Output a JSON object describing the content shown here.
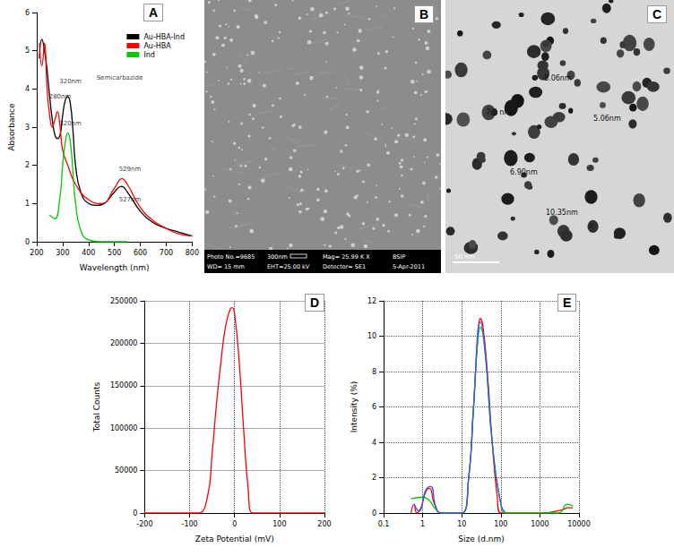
{
  "chart_data": [
    {
      "label": "A",
      "type": "line",
      "x_label": "Wavelength (nm)",
      "y_label": "Absorbance",
      "xlim": [
        200,
        800
      ],
      "xticks": [
        200,
        300,
        400,
        500,
        600,
        700,
        800
      ],
      "ylim": [
        0,
        6
      ],
      "yticks": [
        0,
        1,
        2,
        3,
        4,
        5,
        6
      ],
      "grid": false,
      "legend": "upper right",
      "series": [
        {
          "name": "Au-HBA-Ind",
          "color": "#000000",
          "x": [
            210,
            220,
            230,
            240,
            250,
            260,
            270,
            280,
            290,
            300,
            310,
            320,
            330,
            340,
            350,
            370,
            400,
            430,
            460,
            500,
            527,
            550,
            600,
            650,
            700,
            750,
            800
          ],
          "values": [
            4.8,
            5.3,
            5.0,
            4.5,
            3.8,
            3.2,
            2.8,
            2.7,
            2.8,
            3.3,
            3.7,
            3.8,
            3.6,
            2.9,
            2.0,
            1.3,
            1.0,
            0.95,
            1.0,
            1.3,
            1.45,
            1.3,
            0.8,
            0.5,
            0.35,
            0.25,
            0.15
          ]
        },
        {
          "name": "Au-HBA",
          "color": "#ff0000",
          "x": [
            210,
            220,
            230,
            240,
            250,
            260,
            270,
            280,
            290,
            300,
            320,
            350,
            400,
            450,
            500,
            529,
            550,
            600,
            650,
            700,
            750,
            800
          ],
          "values": [
            5.2,
            4.6,
            5.2,
            4.0,
            3.3,
            3.0,
            3.2,
            3.4,
            3.0,
            2.4,
            2.0,
            1.5,
            1.1,
            1.0,
            1.4,
            1.65,
            1.5,
            0.9,
            0.55,
            0.35,
            0.2,
            0.15
          ]
        },
        {
          "name": "Ind",
          "color": "#00cc00",
          "x": [
            250,
            270,
            290,
            300,
            310,
            320,
            330,
            340,
            350,
            370,
            400,
            450,
            500,
            550
          ],
          "values": [
            0.7,
            0.6,
            1.2,
            2.0,
            2.6,
            2.85,
            2.6,
            1.8,
            1.0,
            0.3,
            0.05,
            0,
            0,
            0
          ]
        }
      ],
      "annotations": [
        {
          "text": "280nm",
          "x": 290,
          "y": 3.8
        },
        {
          "text": "320nm",
          "x": 330,
          "y": 4.2
        },
        {
          "text": "320nm",
          "x": 330,
          "y": 3.1
        },
        {
          "text": "529nm",
          "x": 560,
          "y": 1.9
        },
        {
          "text": "527nm",
          "x": 560,
          "y": 1.1
        },
        {
          "text": "Semicarbazide",
          "x": 520,
          "y": 4.3
        }
      ]
    },
    {
      "label": "D",
      "type": "line",
      "x_label": "Zeta Potential (mV)",
      "y_label": "Total Counts",
      "xlim": [
        -200,
        200
      ],
      "xticks": [
        -200,
        -100,
        0,
        100,
        200
      ],
      "ylim": [
        0,
        250000
      ],
      "yticks": [
        0,
        50000,
        100000,
        150000,
        200000,
        250000
      ],
      "grid": true,
      "color": "#ff0000",
      "x": [
        -200,
        -100,
        -80,
        -60,
        -50,
        -40,
        -30,
        -20,
        -10,
        -5,
        0,
        10,
        20,
        30,
        40,
        100,
        200
      ],
      "values": [
        0,
        0,
        0,
        20000,
        70000,
        130000,
        180000,
        220000,
        240000,
        242000,
        235000,
        180000,
        100000,
        30000,
        0,
        0,
        0
      ]
    },
    {
      "label": "E",
      "type": "line",
      "x_label": "Size (d.nm)",
      "y_label": "Intensity (%)",
      "log": "x",
      "xlim": [
        0.1,
        10000
      ],
      "xticks": [
        0.1,
        1,
        10,
        100,
        1000,
        10000
      ],
      "ylim": [
        0,
        12
      ],
      "yticks": [
        0,
        2,
        4,
        6,
        8,
        10,
        12
      ],
      "grid": true,
      "series": [
        {
          "color": "#ff0000",
          "x": [
            0.5,
            0.6,
            0.7,
            0.9,
            1.2,
            1.5,
            2,
            3,
            10,
            15,
            20,
            25,
            30,
            35,
            45,
            60,
            80,
            100,
            1000,
            4000,
            5000,
            7000
          ],
          "values": [
            0,
            0.5,
            0,
            0.3,
            1.2,
            1.4,
            0.5,
            0,
            0,
            2,
            6,
            9.5,
            11,
            10.5,
            8,
            4,
            1,
            0,
            0,
            0.2,
            0.3,
            0.3
          ]
        },
        {
          "color": "#00cc00",
          "x": [
            0.5,
            1,
            1.5,
            2,
            3,
            10,
            15,
            20,
            25,
            30,
            40,
            60,
            100,
            130,
            3000,
            5000,
            7000
          ],
          "values": [
            0.8,
            0.9,
            0.7,
            0.3,
            0,
            0,
            2,
            6,
            9.5,
            10.5,
            9,
            4,
            0.5,
            0,
            0,
            0.5,
            0.4
          ]
        },
        {
          "color": "#3355ff",
          "x": [
            0.6,
            0.8,
            1.2,
            1.6,
            2.2,
            3,
            10,
            15,
            20,
            30,
            40,
            60,
            100,
            130
          ],
          "values": [
            0.5,
            0.1,
            1.3,
            1.5,
            0.3,
            0,
            0,
            2,
            6,
            10.8,
            9,
            4,
            0.5,
            0
          ]
        }
      ]
    }
  ],
  "images": [
    {
      "label": "B",
      "footer": [
        [
          "Photo No.=9685",
          "300nm",
          "Mag= 25.99 K X",
          "BSIP"
        ],
        [
          "WD= 15 mm",
          "EHT=25.00 kV",
          "Detector= SE1",
          "5-Apr-2011"
        ]
      ]
    },
    {
      "label": "C",
      "particle_labels": [
        "8.06nm",
        "7.0 nm",
        "5.06nm",
        "6.90nm",
        "10.35nm"
      ],
      "scale_bar": "50 nm"
    }
  ]
}
